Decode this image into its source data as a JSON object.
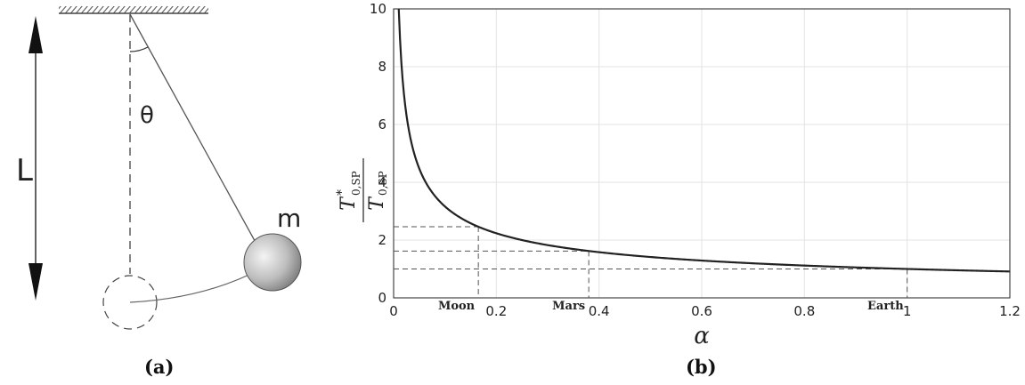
{
  "panel_a": {
    "label": "(a)",
    "length_label": "L",
    "angle_label": "θ",
    "mass_label": "m"
  },
  "panel_b": {
    "label": "(b)",
    "xlabel": "α",
    "ylabel_num_main": "T",
    "ylabel_num_sup": "*",
    "ylabel_num_sub": "0,SP",
    "ylabel_den_main": "T",
    "ylabel_den_sub": "0,SP",
    "markers": [
      {
        "name": "Moon",
        "alpha": 0.165,
        "ratio": 2.46
      },
      {
        "name": "Mars",
        "alpha": 0.38,
        "ratio": 1.62
      },
      {
        "name": "Earth",
        "alpha": 1.0,
        "ratio": 1.0
      }
    ]
  },
  "chart_data": {
    "type": "line",
    "title": "",
    "xlabel": "α",
    "ylabel": "T*0,SP / T0,SP",
    "xlim": [
      0,
      1.2
    ],
    "ylim": [
      0,
      10
    ],
    "xticks": [
      "0",
      "0.2",
      "0.4",
      "0.6",
      "0.8",
      "1",
      "1.2"
    ],
    "yticks": [
      "0",
      "2",
      "4",
      "6",
      "8",
      "10"
    ],
    "grid": true,
    "series": [
      {
        "x": [
          0.01,
          0.015,
          0.02,
          0.03,
          0.04,
          0.05,
          0.06,
          0.08,
          0.1,
          0.12,
          0.15,
          0.2,
          0.25,
          0.3,
          0.4,
          0.5,
          0.6,
          0.7,
          0.8,
          0.9,
          1.0,
          1.1,
          1.2
        ],
        "y": [
          10.0,
          8.16,
          7.07,
          5.77,
          5.0,
          4.47,
          4.08,
          3.54,
          3.16,
          2.89,
          2.58,
          2.24,
          2.0,
          1.83,
          1.58,
          1.41,
          1.29,
          1.2,
          1.12,
          1.05,
          1.0,
          0.95,
          0.91
        ]
      }
    ]
  }
}
